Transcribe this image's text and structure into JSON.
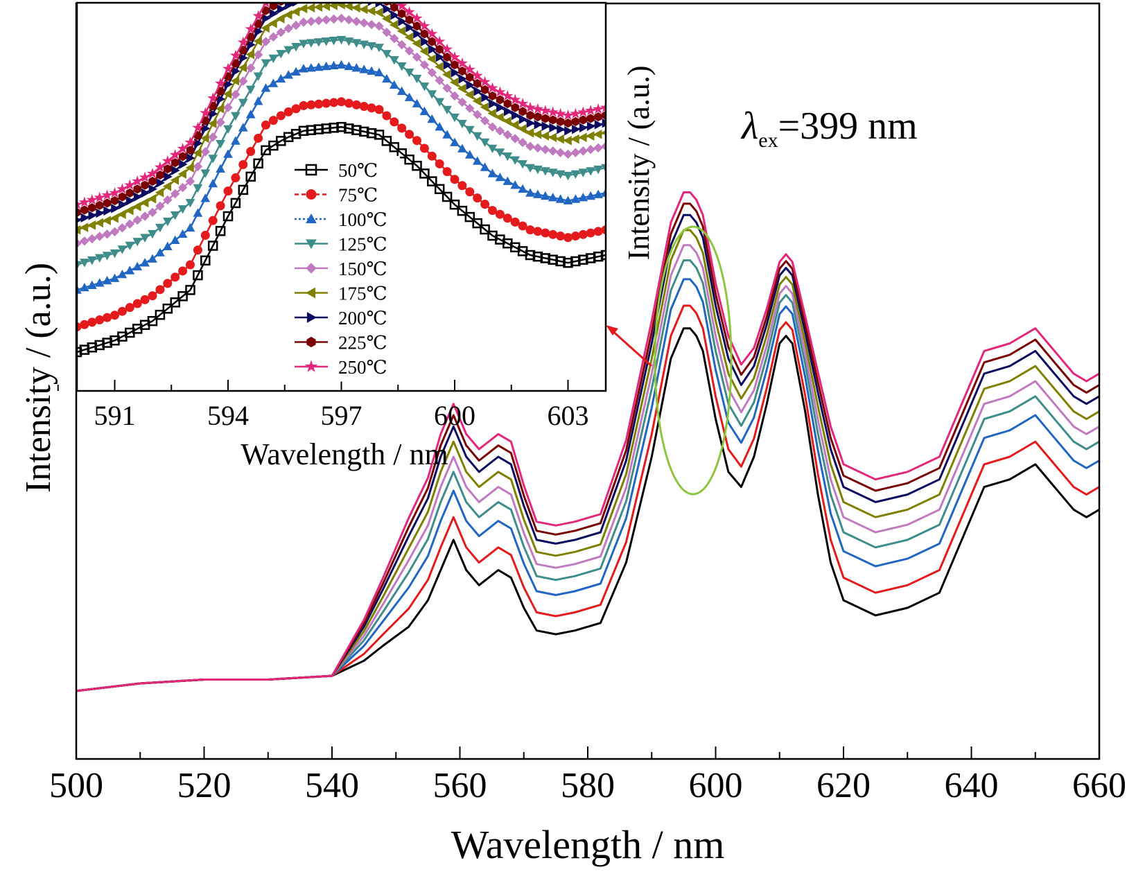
{
  "chart_data": [
    {
      "id": "main",
      "type": "line",
      "xlabel": "Wavelength / nm",
      "ylabel": "Intensity / (a.u.)",
      "xlim": [
        500,
        660
      ],
      "ylim": [
        0,
        100
      ],
      "xticks": [
        500,
        520,
        540,
        560,
        580,
        600,
        620,
        640,
        660
      ],
      "xtick_labels": [
        "500",
        "520",
        "540",
        "560",
        "580",
        "600",
        "620",
        "640",
        "660"
      ],
      "annotation": {
        "lambda": "λ",
        "sub": "ex",
        "text": "=399 nm"
      },
      "x": [
        500,
        510,
        520,
        530,
        540,
        545,
        548,
        552,
        555,
        557,
        559,
        561,
        563,
        566,
        568,
        570,
        572,
        575,
        578,
        582,
        586,
        590,
        593,
        595,
        596,
        597,
        598,
        600,
        602,
        604,
        606,
        608,
        610,
        611,
        612,
        614,
        616,
        618,
        620,
        625,
        630,
        635,
        638,
        642,
        646,
        650,
        653,
        656,
        658,
        660
      ],
      "base": [
        9,
        10,
        10.5,
        10.5,
        11,
        13,
        15,
        17.5,
        21,
        25,
        29,
        25,
        23,
        25,
        24,
        20,
        17,
        16.5,
        17,
        18,
        26,
        40,
        53,
        57,
        57,
        56,
        54,
        45,
        38,
        36,
        40,
        47,
        55,
        56,
        55,
        46,
        35,
        26,
        21,
        19,
        20,
        22,
        28,
        36,
        37,
        39,
        36,
        33,
        32,
        33
      ],
      "weights": [
        0,
        0,
        0,
        0,
        0,
        0.3,
        0.5,
        0.8,
        0.9,
        1,
        1,
        1,
        1,
        1,
        1,
        0.9,
        0.8,
        0.8,
        0.8,
        0.8,
        0.9,
        1,
        1,
        1,
        1,
        1,
        1,
        1,
        1,
        0.9,
        0.8,
        0.7,
        0.6,
        0.6,
        0.6,
        0.7,
        0.9,
        1,
        1,
        1,
        1,
        1,
        1,
        1,
        1,
        1,
        1,
        1,
        1,
        1
      ],
      "offsets": [
        0,
        3,
        6.5,
        9,
        11,
        13,
        15,
        16.5,
        18
      ],
      "series": [
        {
          "name": "50℃",
          "color": "#000000"
        },
        {
          "name": "75℃",
          "color": "#e41a1c"
        },
        {
          "name": "100℃",
          "color": "#2166c2"
        },
        {
          "name": "125℃",
          "color": "#3f8d8a"
        },
        {
          "name": "150℃",
          "color": "#c07ac0"
        },
        {
          "name": "175℃",
          "color": "#808000"
        },
        {
          "name": "200℃",
          "color": "#0b0b60"
        },
        {
          "name": "225℃",
          "color": "#7a0000"
        },
        {
          "name": "250℃",
          "color": "#e3277a"
        }
      ]
    },
    {
      "id": "inset",
      "type": "line",
      "xlabel": "Wavelength / nm",
      "ylabel": "Intensity / (a.u.)",
      "xlim": [
        590,
        604
      ],
      "ylim": [
        0,
        100
      ],
      "xticks": [
        591,
        594,
        597,
        600,
        603
      ],
      "xtick_labels": [
        "591",
        "594",
        "597",
        "600",
        "603"
      ],
      "x": [
        590,
        591,
        592,
        593,
        594,
        595,
        595.5,
        596,
        597,
        598,
        599,
        600,
        601,
        602,
        603,
        604
      ],
      "base": [
        10,
        13,
        18,
        26,
        45,
        62,
        65,
        67,
        68,
        66,
        58,
        48,
        40,
        35,
        33,
        35
      ],
      "offsets": [
        0,
        6.5,
        16,
        22.5,
        28,
        31.5,
        34,
        36,
        38
      ],
      "series": [
        {
          "name": "50℃",
          "color": "#000000",
          "marker": "square"
        },
        {
          "name": "75℃",
          "color": "#e41a1c",
          "marker": "circle"
        },
        {
          "name": "100℃",
          "color": "#2166c2",
          "marker": "triangle-up"
        },
        {
          "name": "125℃",
          "color": "#3f8d8a",
          "marker": "triangle-down"
        },
        {
          "name": "150℃",
          "color": "#c07ac0",
          "marker": "diamond"
        },
        {
          "name": "175℃",
          "color": "#808000",
          "marker": "triangle-left"
        },
        {
          "name": "200℃",
          "color": "#0b0b60",
          "marker": "triangle-right"
        },
        {
          "name": "225℃",
          "color": "#7a0000",
          "marker": "hexagon"
        },
        {
          "name": "250℃",
          "color": "#e3277a",
          "marker": "star"
        }
      ]
    }
  ],
  "highlight": {
    "ellipse_color": "#8cc63f",
    "arrow_color": "#e41a1c"
  }
}
